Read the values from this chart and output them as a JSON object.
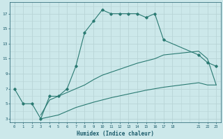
{
  "xlabel": "Humidex (Indice chaleur)",
  "bg_color": "#cce8ea",
  "grid_color": "#b8d4d6",
  "line_color": "#2a7a72",
  "line1_x": [
    0,
    1,
    2,
    3,
    4,
    5,
    6,
    7,
    8,
    9,
    10,
    11,
    12,
    13,
    14,
    15,
    16,
    17,
    21,
    22,
    23
  ],
  "line1_y": [
    7,
    5,
    5,
    3,
    6,
    6,
    7,
    10,
    14.5,
    16,
    17.5,
    17,
    17,
    17,
    17,
    16.5,
    17,
    13.5,
    11.5,
    10.5,
    10
  ],
  "line2_x": [
    3,
    4,
    5,
    6,
    7,
    8,
    9,
    10,
    11,
    12,
    13,
    14,
    15,
    16,
    17,
    21,
    22,
    23
  ],
  "line2_y": [
    3.5,
    5.5,
    6,
    6.5,
    7,
    7.5,
    8.2,
    8.8,
    9.2,
    9.6,
    10,
    10.4,
    10.7,
    11,
    11.5,
    12,
    11,
    7.5
  ],
  "line3_x": [
    3,
    5,
    7,
    9,
    11,
    13,
    15,
    17,
    21,
    22,
    23
  ],
  "line3_y": [
    3,
    3.5,
    4.5,
    5.2,
    5.8,
    6.3,
    6.8,
    7.2,
    7.8,
    7.5,
    7.5
  ],
  "xlim": [
    -0.5,
    23.5
  ],
  "ylim": [
    2.5,
    18.5
  ],
  "yticks": [
    3,
    5,
    7,
    9,
    11,
    13,
    15,
    17
  ],
  "xtick_positions": [
    0,
    1,
    2,
    3,
    4,
    5,
    6,
    7,
    8,
    9,
    10,
    11,
    12,
    13,
    14,
    15,
    16,
    17,
    18,
    21,
    22,
    23
  ],
  "xtick_labels": [
    "0",
    "1",
    "2",
    "3",
    "4",
    "5",
    "6",
    "7",
    "8",
    "9",
    "10",
    "11",
    "12",
    "13",
    "14",
    "15",
    "16",
    "17",
    "18",
    "21",
    "22",
    "23"
  ]
}
